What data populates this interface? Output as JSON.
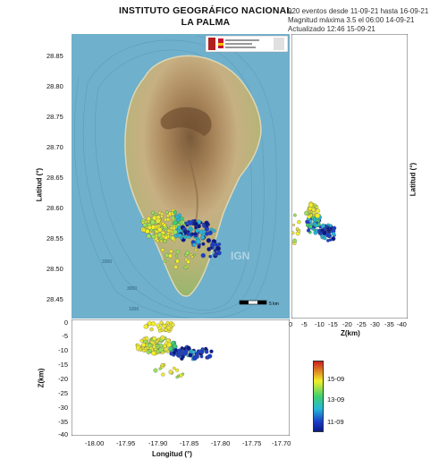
{
  "header": {
    "institute": "INSTITUTO GEOGRÁFICO NACIONAL",
    "region": "LA PALMA",
    "events_line": "920 eventos desde 11-09-21 hasta 16-09-21",
    "magnitude_line": "Magnitud máxima 3.5 el 06:00 14-09-21",
    "updated_line": "Actualizado  12:46  15-09-21"
  },
  "map": {
    "watermark": "IGN",
    "lat_axis_label": "Latitud (°)",
    "lat_ticks": [
      "28.85",
      "28.80",
      "28.75",
      "28.70",
      "28.65",
      "28.60",
      "28.55",
      "28.50",
      "28.45"
    ],
    "lon_axis_label": "Longitud (°)",
    "lon_ticks": [
      "-18.00",
      "-17.95",
      "-17.90",
      "-17.85",
      "-17.80",
      "-17.75",
      "-17.70"
    ],
    "depth_contours": [
      "2000",
      "3000",
      "1000"
    ],
    "scalebar_label": "5 km"
  },
  "side_panel": {
    "axis_label": "Z(km)",
    "ticks": [
      "0",
      "-5",
      "-10",
      "-15",
      "-20",
      "-25",
      "-30",
      "-35",
      "-40"
    ],
    "right_label": "Latitud (°)"
  },
  "bottom_panel": {
    "axis_label": "Z(km)",
    "ticks": [
      "0",
      "-5",
      "-10",
      "-15",
      "-20",
      "-25",
      "-30",
      "-35",
      "-40"
    ]
  },
  "colorbar": {
    "labels": [
      "15-09",
      "13-09",
      "11-09"
    ],
    "colors": [
      "#cc1f1f",
      "#f2ee2a",
      "#3ed16d",
      "#25b7d9",
      "#1a3ec8",
      "#0a1a8a"
    ]
  },
  "colors": {
    "sea": "#6fb0cc",
    "island_land": "#b9a070",
    "coast_green": "#9bbf6a"
  }
}
